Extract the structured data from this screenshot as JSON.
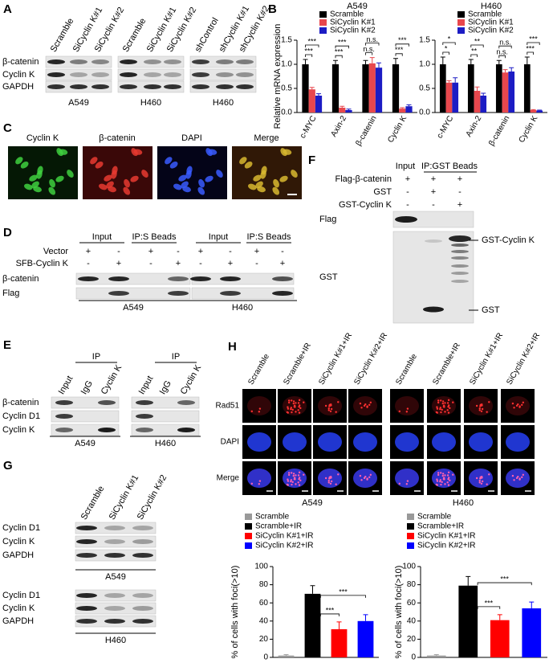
{
  "panels": {
    "a": {
      "label": "A",
      "lanes": [
        "Scramble",
        "SiCyclin K#1",
        "SiCyclin K#2",
        "Scramble",
        "SiCyclin K#1",
        "SiCyclin K#2",
        "shControl",
        "shCyclin K#1",
        "shCyclin K#2"
      ],
      "rows": [
        "β-catenin",
        "Cyclin K",
        "GAPDH"
      ],
      "groups": [
        "A549",
        "H460",
        "H460"
      ]
    },
    "b": {
      "label": "B"
    },
    "c": {
      "label": "C",
      "channels": [
        "Cyclin K",
        "β-catenin",
        "DAPI",
        "Merge"
      ]
    },
    "d": {
      "label": "D",
      "headers": [
        "Input",
        "IP:S Beads",
        "Input",
        "IP:S Beads"
      ],
      "conditions": [
        {
          "name": "Vector",
          "signs": [
            "+",
            "-",
            "+",
            "-",
            "+",
            "-",
            "+",
            "-"
          ]
        },
        {
          "name": "SFB-Cyclin K",
          "signs": [
            "-",
            "+",
            "-",
            "+",
            "-",
            "+",
            "-",
            "+"
          ]
        }
      ],
      "rows": [
        "β-catenin",
        "Flag"
      ],
      "groups": [
        "A549",
        "H460"
      ]
    },
    "e": {
      "label": "E",
      "ip": [
        "IP",
        "IP"
      ],
      "lanes": [
        "Input",
        "IgG",
        "Cyclin K",
        "Input",
        "IgG",
        "Cyclin K"
      ],
      "rows": [
        "β-catenin",
        "Cyclin D1",
        "Cyclin K"
      ],
      "groups": [
        "A549",
        "H460"
      ]
    },
    "f": {
      "label": "F",
      "headers": [
        "Input",
        "IP:GST Beads"
      ],
      "conditions": [
        {
          "name": "Flag-β-catenin",
          "signs": [
            "+",
            "+",
            "+"
          ]
        },
        {
          "name": "GST",
          "signs": [
            "-",
            "+",
            "-"
          ]
        },
        {
          "name": "GST-Cyclin K",
          "signs": [
            "-",
            "-",
            "+"
          ]
        }
      ],
      "rows": [
        "Flag",
        "GST"
      ],
      "markers": [
        "GST-Cyclin K",
        "GST"
      ]
    },
    "g": {
      "label": "G",
      "lanes": [
        "Scramble",
        "SiCyclin K#1",
        "SiCyclin K#2"
      ],
      "blots": [
        {
          "rows": [
            "Cyclin D1",
            "Cyclin K",
            "GAPDH"
          ],
          "group": "A549"
        },
        {
          "rows": [
            "Cyclin D1",
            "Cyclin K",
            "GAPDH"
          ],
          "group": "H460"
        }
      ]
    },
    "h": {
      "label": "H",
      "columns": [
        "Scramble",
        "Scramble+IR",
        "SiCyclin K#1+IR",
        "SiCyclin K#2+IR",
        "Scramble",
        "Scramble+IR",
        "SiCyclin K#1+IR",
        "SiCyclin K#2+IR"
      ],
      "rows": [
        "Rad51",
        "DAPI",
        "Merge"
      ],
      "groups": [
        "A549",
        "H460"
      ]
    }
  },
  "chart_data": [
    {
      "type": "bar",
      "title": "A549",
      "y_label": "Relative mRNA expression",
      "categories": [
        "c-MYC",
        "Axin-2",
        "β-catenin",
        "Cyclin K"
      ],
      "series": [
        {
          "name": "Scramble",
          "color": "#000000",
          "values": [
            1,
            1,
            1,
            1
          ],
          "errors": [
            0.1,
            0.08,
            0.08,
            0.12
          ]
        },
        {
          "name": "SiCyclin K#1",
          "color": "#e8474d",
          "values": [
            0.48,
            0.1,
            1.02,
            0.08
          ],
          "errors": [
            0.04,
            0.03,
            0.12,
            0.02
          ]
        },
        {
          "name": "SiCyclin K#2",
          "color": "#1c1cc4",
          "values": [
            0.35,
            0.05,
            0.93,
            0.13
          ],
          "errors": [
            0.04,
            0.02,
            0.1,
            0.03
          ]
        }
      ],
      "ylim": [
        0,
        1.5
      ],
      "yticks": [
        {
          "value": 0,
          "label": "0.0"
        },
        0.5,
        {
          "value": 1,
          "label": "1.0"
        },
        1.5
      ],
      "annotations": [
        [
          "***",
          "***"
        ],
        [
          "***",
          "***"
        ],
        [
          "n.s.",
          "n.s."
        ],
        [
          "***",
          "***"
        ]
      ]
    },
    {
      "type": "bar",
      "title": "H460",
      "categories": [
        "c-MYC",
        "Axin-2",
        "β-catenin",
        "Cyclin K"
      ],
      "series": [
        {
          "name": "Scramble",
          "color": "#000000",
          "values": [
            1,
            1,
            1,
            1
          ],
          "errors": [
            0.15,
            0.1,
            0.08,
            0.15
          ]
        },
        {
          "name": "SiCyclin K#1",
          "color": "#e8474d",
          "values": [
            0.62,
            0.45,
            0.83,
            0.05
          ],
          "errors": [
            0.04,
            0.08,
            0.06,
            0.01
          ]
        },
        {
          "name": "SiCyclin K#2",
          "color": "#1c1cc4",
          "values": [
            0.62,
            0.35,
            0.85,
            0.04
          ],
          "errors": [
            0.1,
            0.05,
            0.08,
            0.01
          ]
        }
      ],
      "ylim": [
        0,
        1.5
      ],
      "yticks": [
        {
          "value": 0,
          "label": "0.0"
        },
        0.5,
        {
          "value": 1,
          "label": "1.0"
        },
        1.5
      ],
      "annotations": [
        [
          "*",
          "*"
        ],
        [
          "**",
          "**"
        ],
        [
          "n.s.",
          "n.s."
        ],
        [
          "***",
          "***"
        ]
      ]
    },
    {
      "type": "bar",
      "y_label": "% of cells with foci(>10)",
      "series": [
        {
          "name": "Scramble",
          "color": "#999999",
          "values": [
            2
          ],
          "errors": [
            1
          ]
        },
        {
          "name": "Scramble+IR",
          "color": "#000000",
          "values": [
            70
          ],
          "errors": [
            9
          ]
        },
        {
          "name": "SiCyclin K#1+IR",
          "color": "#ff0000",
          "values": [
            31
          ],
          "errors": [
            8
          ]
        },
        {
          "name": "SiCyclin K#2+IR",
          "color": "#0000ff",
          "values": [
            40
          ],
          "errors": [
            7
          ]
        }
      ],
      "ylim": [
        0,
        100
      ],
      "yticks": [
        0,
        20,
        40,
        60,
        80,
        100
      ],
      "annotations": [
        "***",
        "***"
      ]
    },
    {
      "type": "bar",
      "y_label": "% of cells with foci(>10)",
      "series": [
        {
          "name": "Scramble",
          "color": "#999999",
          "values": [
            2
          ],
          "errors": [
            1
          ]
        },
        {
          "name": "Scramble+IR",
          "color": "#000000",
          "values": [
            79
          ],
          "errors": [
            10
          ]
        },
        {
          "name": "SiCyclin K#1+IR",
          "color": "#ff0000",
          "values": [
            41
          ],
          "errors": [
            6
          ]
        },
        {
          "name": "SiCyclin K#2+IR",
          "color": "#0000ff",
          "values": [
            54
          ],
          "errors": [
            7
          ]
        }
      ],
      "ylim": [
        0,
        100
      ],
      "yticks": [
        0,
        20,
        40,
        60,
        80,
        100
      ],
      "annotations": [
        "***",
        "***"
      ]
    }
  ]
}
